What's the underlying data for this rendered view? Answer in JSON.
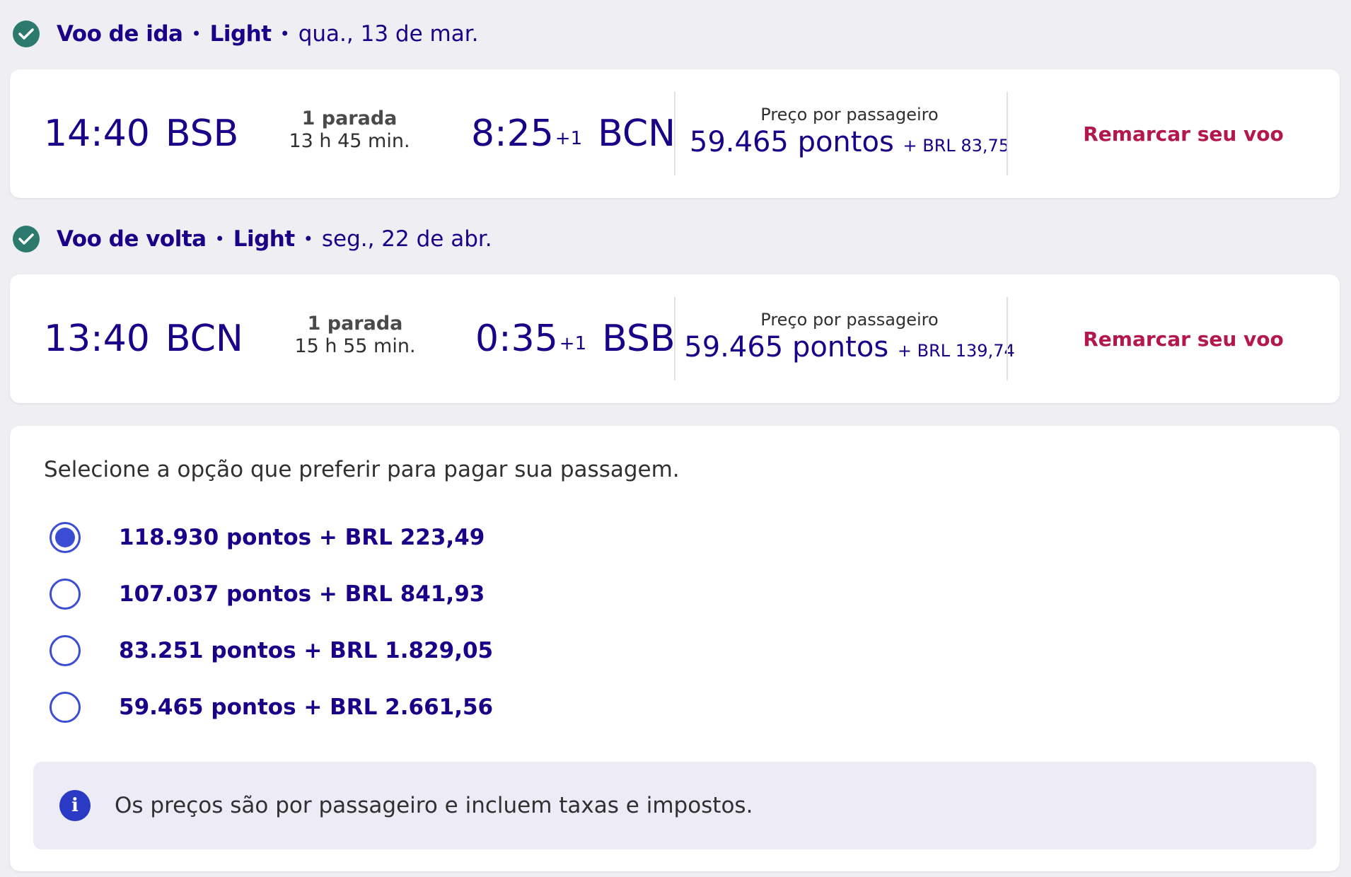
{
  "outbound": {
    "title": "Voo de ida",
    "fare": "Light",
    "date": "qua., 13 de mar.",
    "departure_time": "14:40",
    "departure_code": "BSB",
    "stops": "1 parada",
    "duration": "13 h 45 min.",
    "arrival_time": "8:25",
    "arrival_day_offset": "+1",
    "arrival_code": "BCN",
    "price_label": "Preço por passageiro",
    "price_points": "59.465 pontos",
    "price_extra": "+ BRL 83,75",
    "action_label": "Remarcar seu voo"
  },
  "return": {
    "title": "Voo de volta",
    "fare": "Light",
    "date": "seg., 22 de abr.",
    "departure_time": "13:40",
    "departure_code": "BCN",
    "stops": "1 parada",
    "duration": "15 h 55 min.",
    "arrival_time": "0:35",
    "arrival_day_offset": "+1",
    "arrival_code": "BSB",
    "price_label": "Preço por passageiro",
    "price_points": "59.465 pontos",
    "price_extra": "+ BRL 139,74",
    "action_label": "Remarcar seu voo"
  },
  "separator": "•",
  "payment": {
    "title": "Selecione a opção que preferir para pagar sua passagem.",
    "options": [
      {
        "label": "118.930 pontos + BRL 223,49",
        "selected": true
      },
      {
        "label": "107.037 pontos + BRL 841,93",
        "selected": false
      },
      {
        "label": "83.251 pontos + BRL 1.829,05",
        "selected": false
      },
      {
        "label": "59.465 pontos + BRL 2.661,56",
        "selected": false
      }
    ],
    "info_text": "Os preços são por passageiro e incluem taxas e impostos."
  },
  "colors": {
    "primary": "#1b0088",
    "accent_red": "#b3174b",
    "radio": "#3b4ed3",
    "check": "#2c7a6e",
    "info_bg": "#ecebf6"
  },
  "icons": {
    "check": "check-circle-icon",
    "info": "info-icon"
  }
}
